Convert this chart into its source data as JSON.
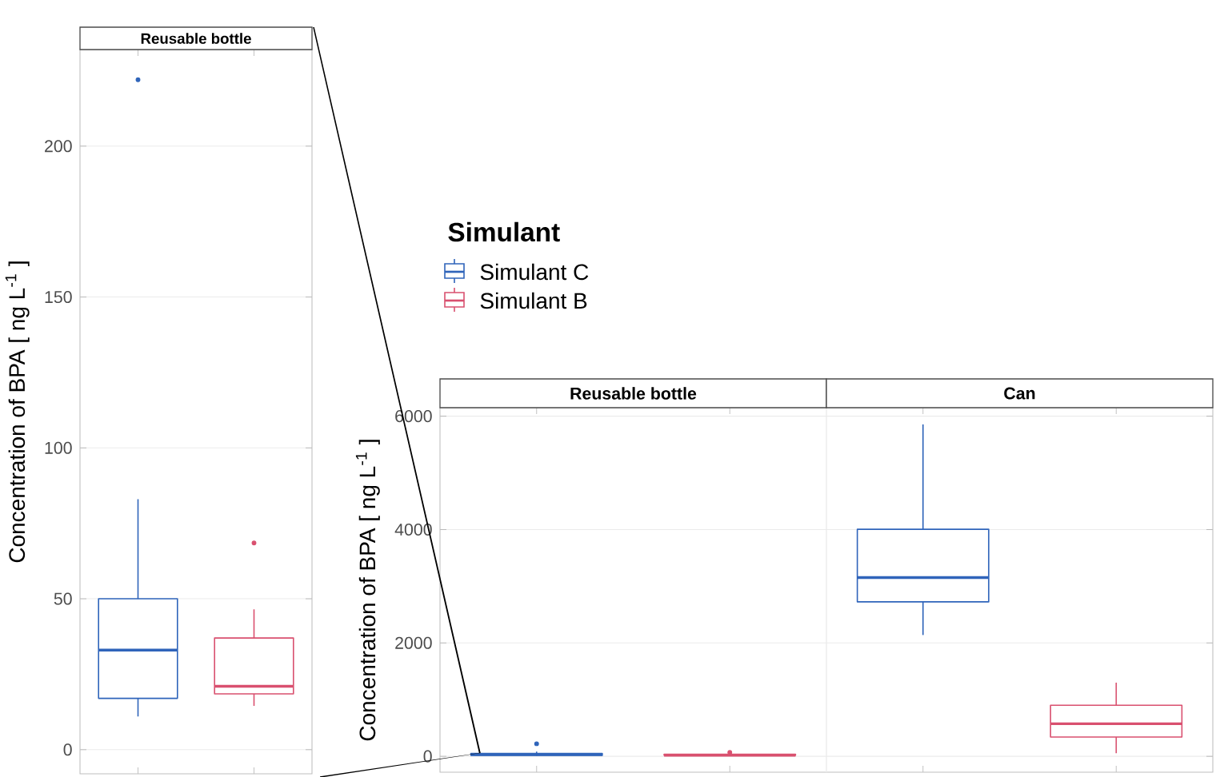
{
  "chart_data": [
    {
      "type": "box",
      "title": "Reusable bottle",
      "ylabel": "Concentration of BPA [ ng L$^{-1}$ ]",
      "categories": [
        null,
        null
      ],
      "ylim": [
        -8,
        232
      ],
      "yticks": [
        0,
        50,
        100,
        150,
        200
      ],
      "grid": "y",
      "tick_labels": "y",
      "series": [
        {
          "color": "#2f64ba",
          "boxes": [
            {
              "low": 11,
              "q1": 17,
              "median": 33,
              "q3": 50,
              "high": 83,
              "outliers": [
                222
              ]
            },
            null
          ]
        },
        {
          "color": "#d9506f",
          "boxes": [
            null,
            {
              "low": 14.5,
              "q1": 18.5,
              "median": 21,
              "q3": 37,
              "high": 46.5,
              "outliers": [
                68.5
              ]
            }
          ]
        }
      ]
    },
    {
      "type": "box",
      "annotations": [
        "Reusable bottle",
        "Can"
      ],
      "ylabel": "Concentration of BPA [ ng L$^{-1}$ ]",
      "legend_title": "Simulant",
      "categories": [
        null,
        null,
        null,
        null
      ],
      "ylim": [
        -280,
        6150
      ],
      "yticks": [
        0,
        2000,
        4000,
        6000
      ],
      "grid": "y",
      "tick_labels": "y",
      "legend": "top left",
      "series": [
        {
          "name": "Simulant C",
          "color": "#2f64ba",
          "boxes": [
            {
              "low": 11,
              "q1": 17,
              "median": 33,
              "q3": 50,
              "high": 83,
              "outliers": [
                222
              ]
            },
            null,
            {
              "low": 2140,
              "q1": 2725,
              "median": 3155,
              "q3": 4005,
              "high": 5855
            },
            null
          ]
        },
        {
          "name": "Simulant B",
          "color": "#d9506f",
          "boxes": [
            null,
            {
              "low": 14.5,
              "q1": 18.5,
              "median": 21,
              "q3": 37,
              "high": 46.5,
              "outliers": [
                68.5
              ]
            },
            null,
            {
              "low": 55,
              "q1": 340,
              "median": 575,
              "q3": 900,
              "high": 1300
            }
          ]
        }
      ]
    }
  ]
}
